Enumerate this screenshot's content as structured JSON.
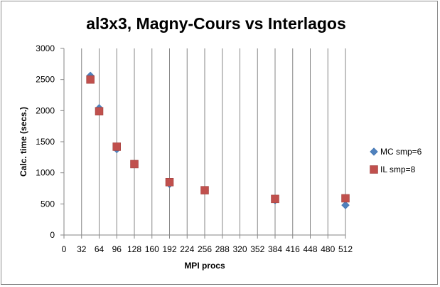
{
  "chart_data": {
    "type": "scatter",
    "title": "al3x3, Magny-Cours vs Interlagos",
    "xlabel": "MPI procs",
    "ylabel": "Calc. time (secs.)",
    "xlim": [
      0,
      512
    ],
    "ylim": [
      0,
      3000
    ],
    "x_ticks": [
      0,
      32,
      64,
      96,
      128,
      160,
      192,
      224,
      256,
      288,
      320,
      352,
      384,
      416,
      448,
      480,
      512
    ],
    "y_ticks": [
      0,
      500,
      1000,
      1500,
      2000,
      2500,
      3000
    ],
    "vertical_grid": true,
    "horizontal_grid": false,
    "legend_position": "right",
    "series": [
      {
        "name": "MC smp=6",
        "marker": "diamond",
        "color": "#4f81bd",
        "points": [
          {
            "x": 48,
            "y": 2560
          },
          {
            "x": 64,
            "y": 2040
          },
          {
            "x": 96,
            "y": 1380
          },
          {
            "x": 128,
            "y": 1140
          },
          {
            "x": 192,
            "y": 820
          },
          {
            "x": 256,
            "y": 720
          },
          {
            "x": 384,
            "y": 560
          },
          {
            "x": 512,
            "y": 480
          }
        ]
      },
      {
        "name": "IL smp=8",
        "marker": "square",
        "color": "#c0504d",
        "points": [
          {
            "x": 48,
            "y": 2500
          },
          {
            "x": 64,
            "y": 1990
          },
          {
            "x": 96,
            "y": 1420
          },
          {
            "x": 128,
            "y": 1140
          },
          {
            "x": 192,
            "y": 850
          },
          {
            "x": 256,
            "y": 720
          },
          {
            "x": 384,
            "y": 580
          },
          {
            "x": 512,
            "y": 590
          }
        ]
      }
    ]
  }
}
